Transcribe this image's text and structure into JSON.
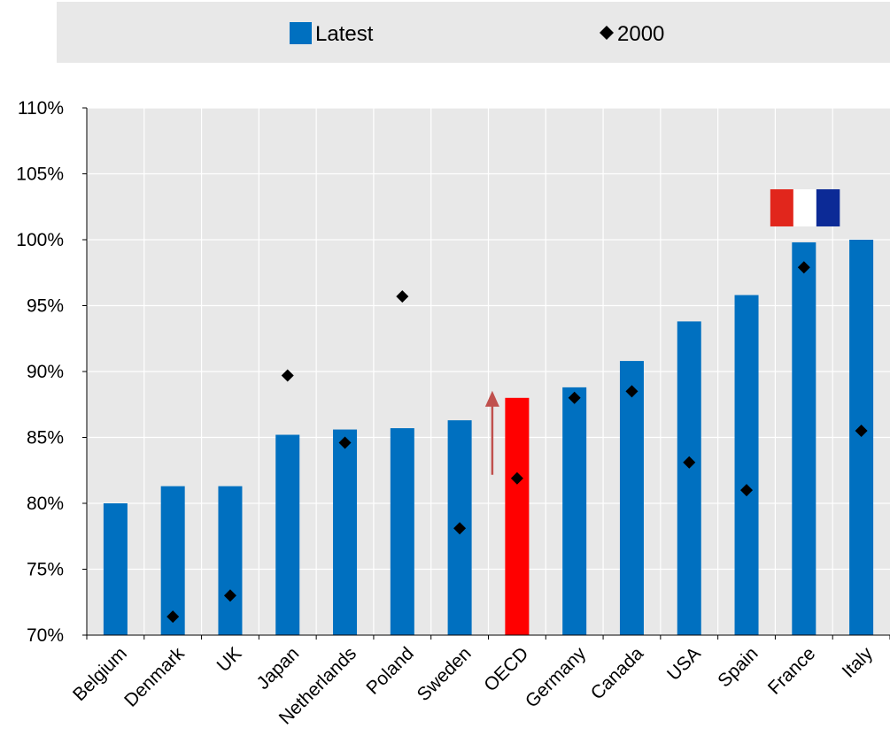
{
  "chart_data": {
    "type": "bar",
    "categories": [
      "Belgium",
      "Denmark",
      "UK",
      "Japan",
      "Netherlands",
      "Poland",
      "Sweden",
      "OECD",
      "Germany",
      "Canada",
      "USA",
      "Spain",
      "France",
      "Italy"
    ],
    "series": [
      {
        "name": "Latest",
        "type": "bar",
        "values": [
          80.0,
          81.3,
          81.3,
          85.2,
          85.6,
          85.7,
          86.3,
          88.0,
          88.8,
          90.8,
          93.8,
          95.8,
          99.8,
          100.0
        ]
      },
      {
        "name": "2000",
        "type": "scatter",
        "values": [
          null,
          71.4,
          73.0,
          89.7,
          84.6,
          95.7,
          78.1,
          81.9,
          88.0,
          88.5,
          83.1,
          81.0,
          97.9,
          85.5
        ]
      }
    ],
    "highlight_category": "OECD",
    "highlight_color": "#ff0000",
    "bar_color": "#0070c0",
    "marker_color": "#000000",
    "arrow_color": "#c0504d",
    "plot_background": "#e8e8e8",
    "legend_background": "#e8e8e8",
    "yticks": [
      "70%",
      "75%",
      "80%",
      "85%",
      "90%",
      "95%",
      "100%",
      "105%",
      "110%"
    ],
    "ylim": [
      70,
      110
    ],
    "grid": true,
    "legend_position": "top",
    "flag_category": "France",
    "flag_colors": [
      "#e1261c",
      "#ffffff",
      "#0c2a96"
    ]
  }
}
